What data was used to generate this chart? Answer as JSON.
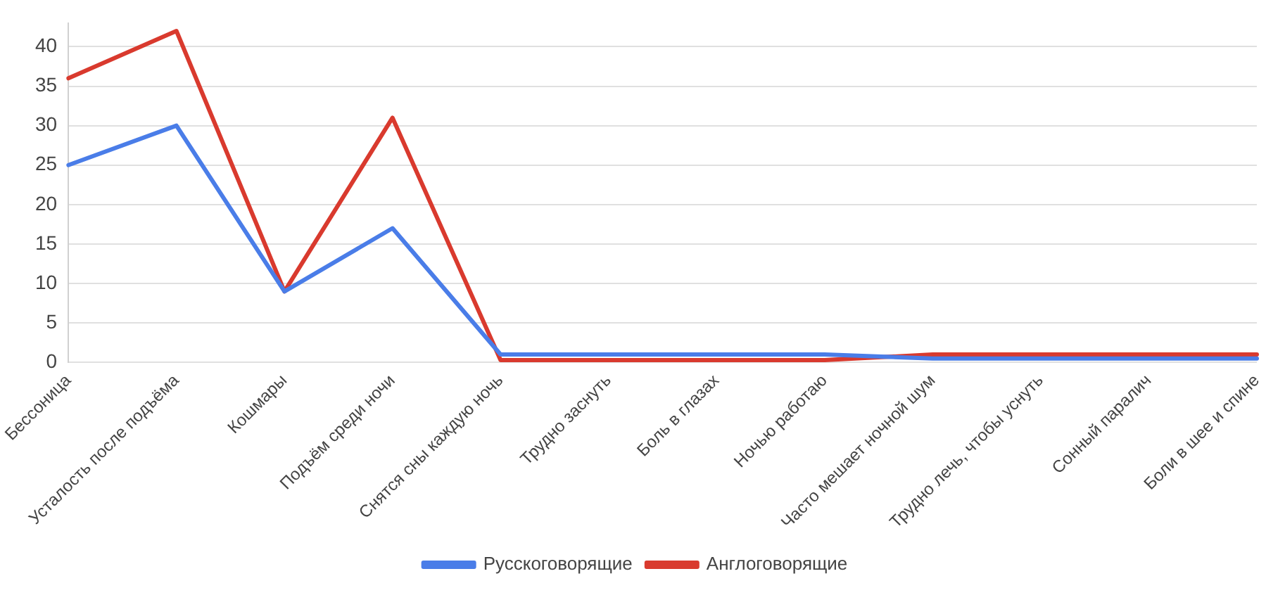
{
  "chart_data": {
    "type": "line",
    "categories": [
      "Бессоница",
      "Усталость после подъёма",
      "Кошмары",
      "Подъём среди ночи",
      "Снятся сны каждую ночь",
      "Трудно заснуть",
      "Боль в глазах",
      "Ночью работаю",
      "Часто мешает ночной шум",
      "Трудно лечь, чтобы уснуть",
      "Сонный паралич",
      "Боли в шее и спине"
    ],
    "series": [
      {
        "name": "Русскоговорящие",
        "color": "#4a7de8",
        "values": [
          25,
          30,
          9,
          17,
          1,
          1,
          1,
          1,
          0.5,
          0.5,
          0.5,
          0.5
        ]
      },
      {
        "name": "Англоговорящие",
        "color": "#d93a2e",
        "values": [
          36,
          42,
          9,
          31,
          0.3,
          0.3,
          0.3,
          0.3,
          1,
          1,
          1,
          1
        ]
      }
    ],
    "ylim": [
      0,
      43
    ],
    "yticks": [
      0,
      5,
      10,
      15,
      20,
      25,
      30,
      35,
      40
    ],
    "grid": "y",
    "legend": "bottom",
    "marker": "none",
    "line_style": "solid"
  }
}
